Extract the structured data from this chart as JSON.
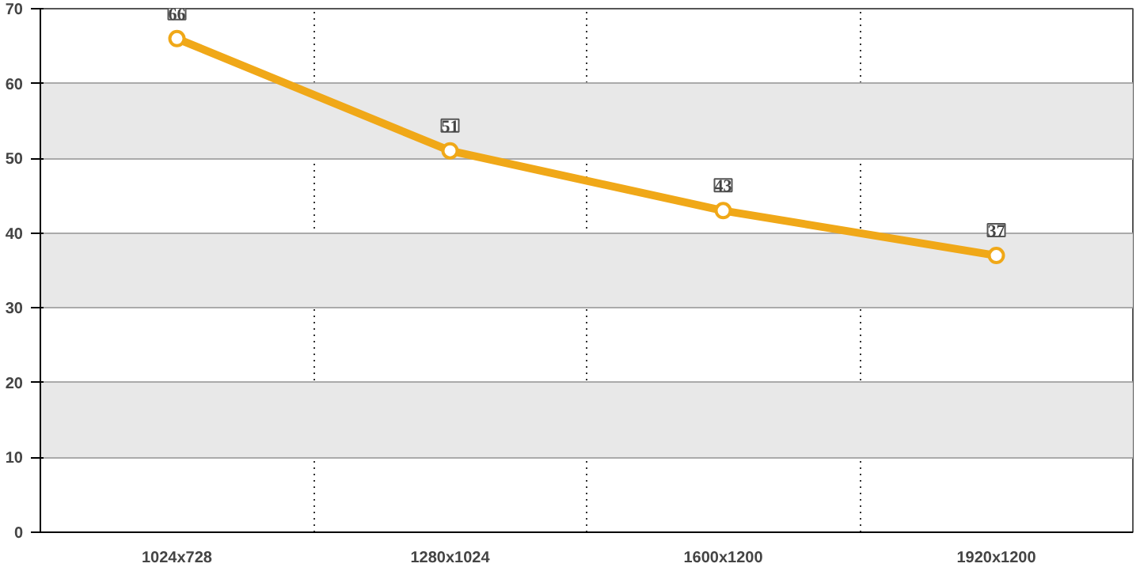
{
  "chart_data": {
    "type": "line",
    "categories": [
      "1024x728",
      "1280x1024",
      "1600x1200",
      "1920x1200"
    ],
    "series": [
      {
        "color": "#f0a818",
        "values": [
          66,
          51,
          43,
          37
        ]
      }
    ],
    "ylim": [
      0,
      70
    ],
    "yticks": [
      0,
      10,
      20,
      30,
      40,
      50,
      60,
      70
    ],
    "grid": true,
    "data_labels": true,
    "marker": "circle",
    "line_style": "solid"
  }
}
